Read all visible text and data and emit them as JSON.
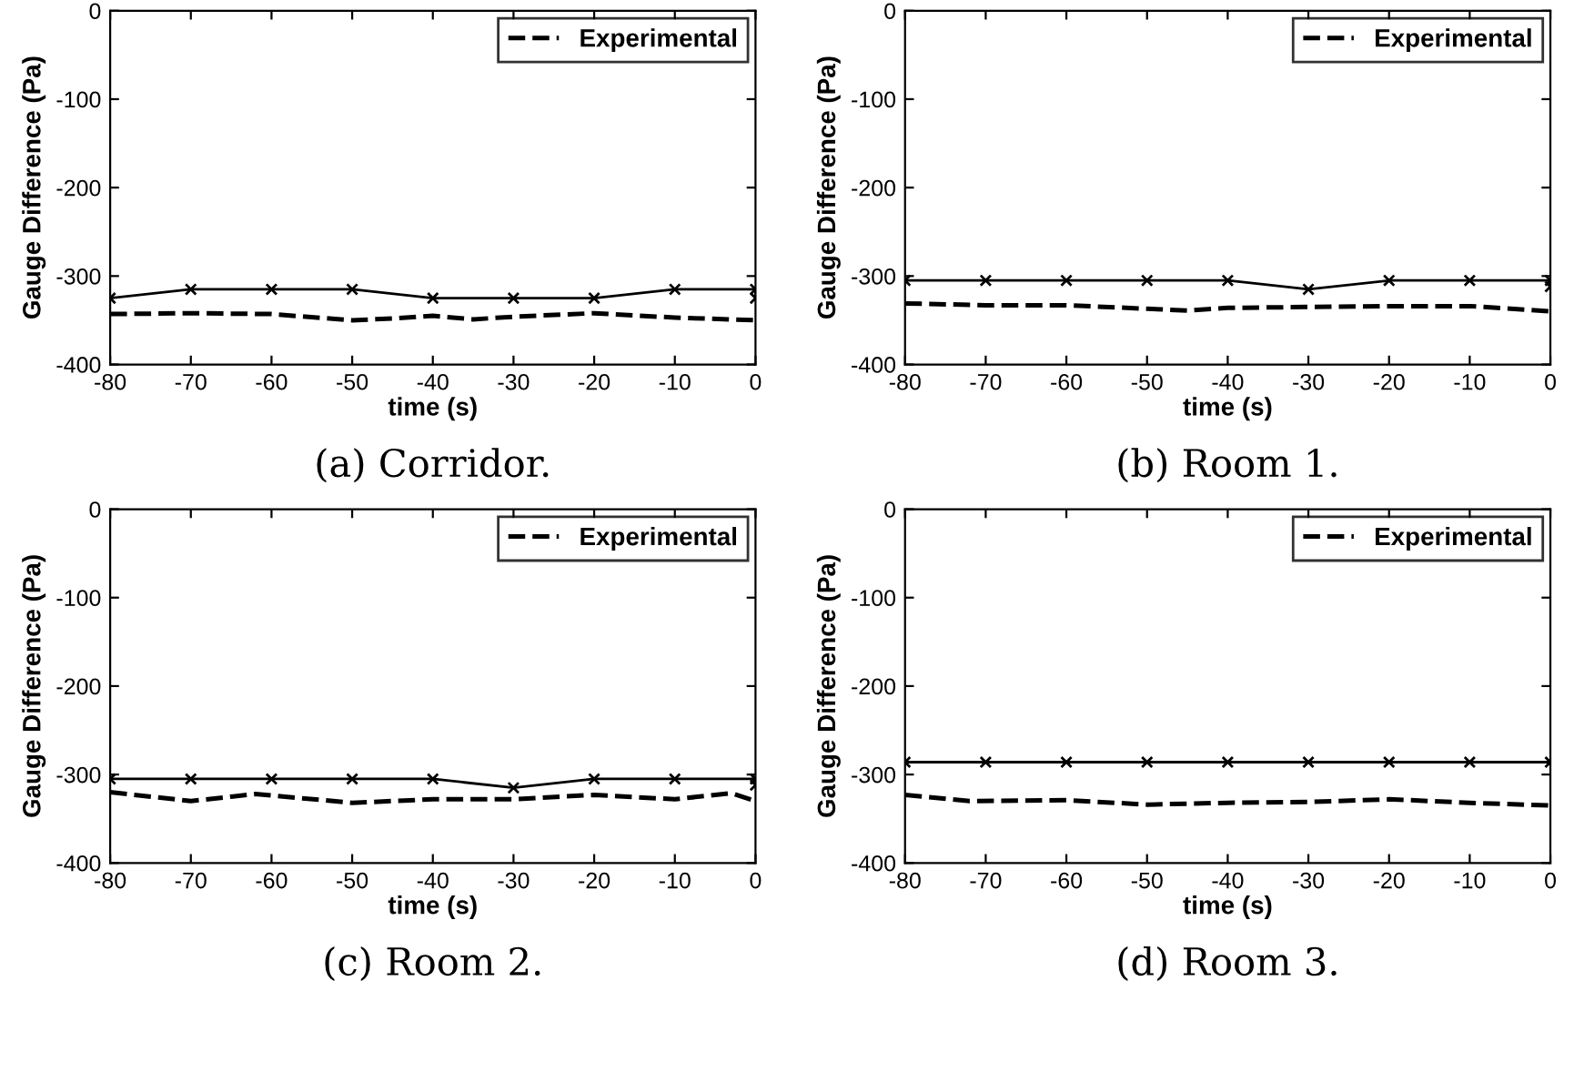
{
  "chart_data": [
    {
      "type": "line",
      "title": "(a) Corridor.",
      "xlabel": "time (s)",
      "ylabel": "Gauge Difference (Pa)",
      "xlim": [
        -80,
        0
      ],
      "ylim": [
        -400,
        0
      ],
      "xticks": [
        -80,
        -70,
        -60,
        -50,
        -40,
        -30,
        -20,
        -10,
        0
      ],
      "yticks": [
        -400,
        -300,
        -200,
        -100,
        0
      ],
      "grid": false,
      "legend": "top right",
      "series": [
        {
          "name": "Experimental",
          "color": "#000000",
          "line_style": "dashed",
          "marker": "none",
          "x": [
            -80,
            -70,
            -60,
            -50,
            -45,
            -40,
            -35,
            -30,
            -20,
            -10,
            0
          ],
          "values": [
            -343,
            -342,
            -343,
            -350,
            -348,
            -345,
            -349,
            -346,
            -342,
            -347,
            -350
          ]
        },
        {
          "color": "#000000",
          "line_style": "solid",
          "marker": "cross",
          "x": [
            -80,
            -70,
            -60,
            -50,
            -40,
            -30,
            -20,
            -10,
            0,
            0
          ],
          "values": [
            -325,
            -315,
            -315,
            -315,
            -325,
            -325,
            -325,
            -315,
            -315,
            -325
          ]
        }
      ]
    },
    {
      "type": "line",
      "title": "(b) Room 1.",
      "xlabel": "time (s)",
      "ylabel": "Gauge Difference (Pa)",
      "xlim": [
        -80,
        0
      ],
      "ylim": [
        -400,
        0
      ],
      "xticks": [
        -80,
        -70,
        -60,
        -50,
        -40,
        -30,
        -20,
        -10,
        0
      ],
      "yticks": [
        -400,
        -300,
        -200,
        -100,
        0
      ],
      "grid": false,
      "legend": "top right",
      "series": [
        {
          "name": "Experimental",
          "color": "#000000",
          "line_style": "dashed",
          "marker": "none",
          "x": [
            -80,
            -70,
            -60,
            -50,
            -45,
            -40,
            -30,
            -20,
            -10,
            0
          ],
          "values": [
            -331,
            -333,
            -333,
            -337,
            -339,
            -336,
            -335,
            -334,
            -334,
            -340
          ]
        },
        {
          "color": "#000000",
          "line_style": "solid",
          "marker": "cross",
          "x": [
            -80,
            -70,
            -60,
            -50,
            -40,
            -30,
            -20,
            -10,
            0,
            0
          ],
          "values": [
            -305,
            -305,
            -305,
            -305,
            -305,
            -315,
            -305,
            -305,
            -305,
            -312
          ]
        }
      ]
    },
    {
      "type": "line",
      "title": "(c) Room 2.",
      "xlabel": "time (s)",
      "ylabel": "Gauge Difference (Pa)",
      "xlim": [
        -80,
        0
      ],
      "ylim": [
        -400,
        0
      ],
      "xticks": [
        -80,
        -70,
        -60,
        -50,
        -40,
        -30,
        -20,
        -10,
        0
      ],
      "yticks": [
        -400,
        -300,
        -200,
        -100,
        0
      ],
      "grid": false,
      "legend": "top right",
      "series": [
        {
          "name": "Experimental",
          "color": "#000000",
          "line_style": "dashed",
          "marker": "none",
          "x": [
            -80,
            -70,
            -62,
            -50,
            -40,
            -30,
            -20,
            -10,
            -3,
            0
          ],
          "values": [
            -320,
            -330,
            -322,
            -332,
            -328,
            -328,
            -323,
            -328,
            -321,
            -330
          ]
        },
        {
          "color": "#000000",
          "line_style": "solid",
          "marker": "cross",
          "x": [
            -80,
            -70,
            -60,
            -50,
            -40,
            -30,
            -20,
            -10,
            0,
            0
          ],
          "values": [
            -305,
            -305,
            -305,
            -305,
            -305,
            -315,
            -305,
            -305,
            -305,
            -312
          ]
        }
      ]
    },
    {
      "type": "line",
      "title": "(d) Room 3.",
      "xlabel": "time (s)",
      "ylabel": "Gauge Difference (Pa)",
      "xlim": [
        -80,
        0
      ],
      "ylim": [
        -400,
        0
      ],
      "xticks": [
        -80,
        -70,
        -60,
        -50,
        -40,
        -30,
        -20,
        -10,
        0
      ],
      "yticks": [
        -400,
        -300,
        -200,
        -100,
        0
      ],
      "grid": false,
      "legend": "top right",
      "series": [
        {
          "name": "Experimental",
          "color": "#000000",
          "line_style": "dashed",
          "marker": "none",
          "x": [
            -80,
            -72,
            -60,
            -50,
            -40,
            -30,
            -20,
            -10,
            0
          ],
          "values": [
            -323,
            -330,
            -329,
            -334,
            -332,
            -331,
            -328,
            -332,
            -335
          ]
        },
        {
          "color": "#000000",
          "line_style": "solid",
          "marker": "cross",
          "x": [
            -80,
            -70,
            -60,
            -50,
            -40,
            -30,
            -20,
            -10,
            0
          ],
          "values": [
            -286,
            -286,
            -286,
            -286,
            -286,
            -286,
            -286,
            -286,
            -286
          ]
        }
      ]
    }
  ]
}
